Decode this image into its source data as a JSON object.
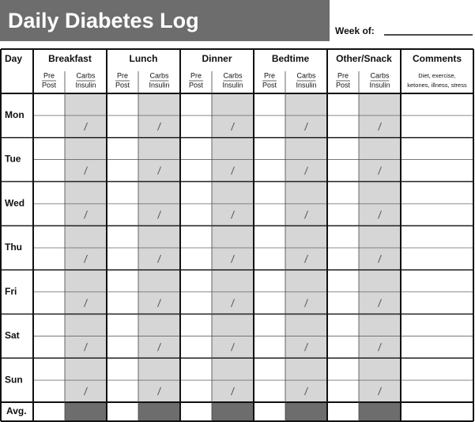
{
  "header": {
    "title": "Daily Diabetes Log",
    "week_label": "Week of:"
  },
  "table": {
    "day_header": "Day",
    "meals": [
      {
        "name": "Breakfast",
        "pre": "Pre",
        "post": "Post",
        "carbs": "Carbs",
        "insulin": "Insulin"
      },
      {
        "name": "Lunch",
        "pre": "Pre",
        "post": "Post",
        "carbs": "Carbs",
        "insulin": "Insulin"
      },
      {
        "name": "Dinner",
        "pre": "Pre",
        "post": "Post",
        "carbs": "Carbs",
        "insulin": "Insulin"
      },
      {
        "name": "Bedtime",
        "pre": "Pre",
        "post": "Post",
        "carbs": "Carbs",
        "insulin": "Insulin"
      },
      {
        "name": "Other/Snack",
        "pre": "Pre",
        "post": "Post",
        "carbs": "Carbs",
        "insulin": "Insulin"
      }
    ],
    "comments": {
      "name": "Comments",
      "notes": [
        "Diet, exercise,",
        "ketones, illness, stress"
      ]
    },
    "days": [
      "Mon",
      "Tue",
      "Wed",
      "Thu",
      "Fri",
      "Sat",
      "Sun"
    ],
    "average": "Avg."
  }
}
